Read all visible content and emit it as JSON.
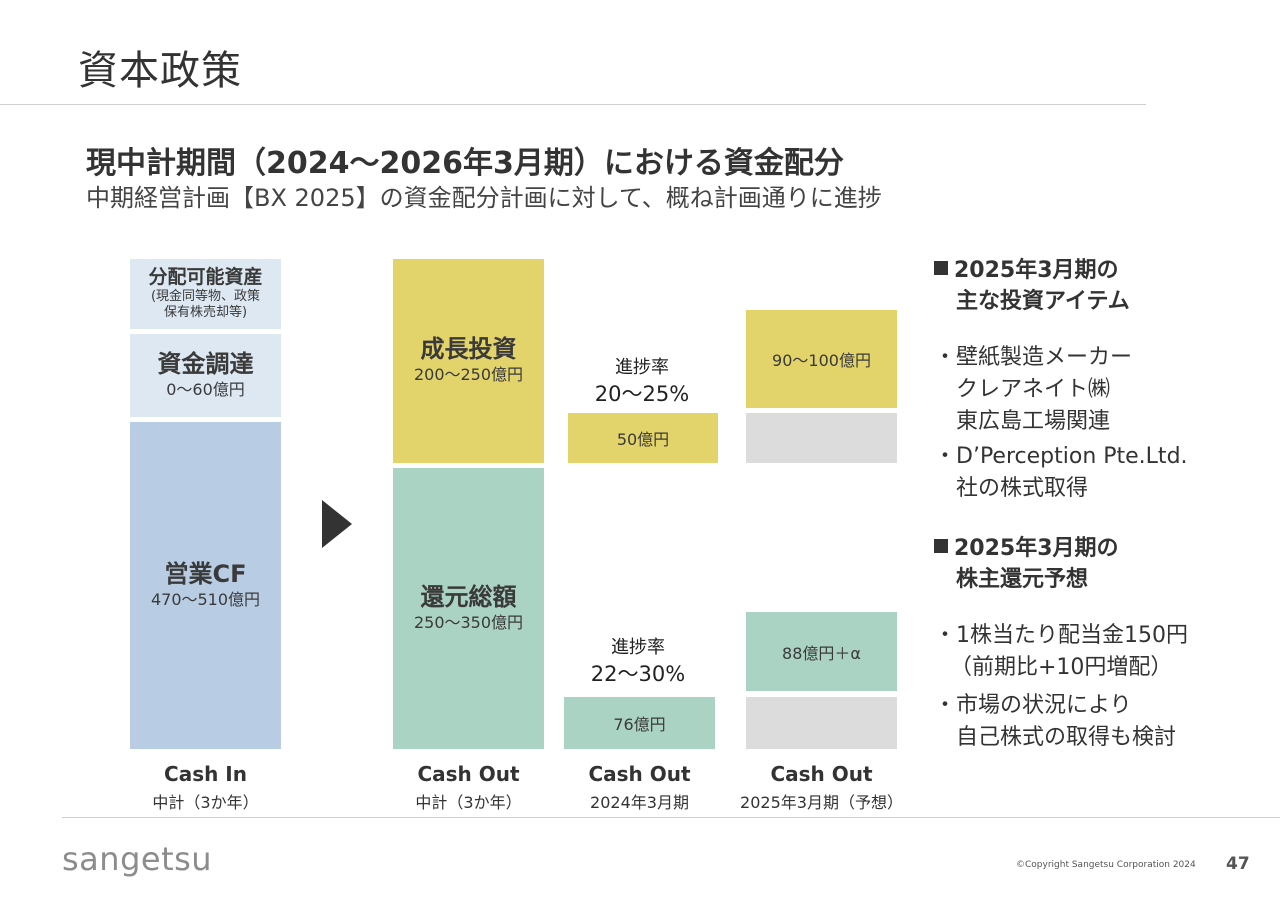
{
  "page_title": "資本政策",
  "heading": "現中計期間（2024～2026年3月期）における資金配分",
  "subheading": "中期経営計画【BX 2025】の資金配分計画に対して、概ね計画通りに進捗",
  "cash_in": {
    "distributable_title": "分配可能資産",
    "distributable_note_1": "(現金同等物、政策",
    "distributable_note_2": "保有株売却等)",
    "funding_title": "資金調達",
    "funding_amount": "0～60億円",
    "operating_title": "営業CF",
    "operating_amount": "470～510億円",
    "label": "Cash In",
    "sublabel": "中計（3か年）"
  },
  "cash_out_plan": {
    "growth_title": "成長投資",
    "growth_amount": "200～250億円",
    "return_title": "還元総額",
    "return_amount": "250～350億円",
    "label": "Cash Out",
    "sublabel": "中計（3か年）"
  },
  "cash_out_2024": {
    "growth_rate_label": "進捗率",
    "growth_rate_value": "20～25%",
    "growth_amount": "50億円",
    "return_rate_label": "進捗率",
    "return_rate_value": "22～30%",
    "return_amount": "76億円",
    "label": "Cash Out",
    "sublabel": "2024年3月期"
  },
  "cash_out_2025": {
    "growth_amount": "90～100億円",
    "return_amount": "88億円＋α",
    "label": "Cash Out",
    "sublabel": "2025年3月期（予想）"
  },
  "side": {
    "investment_head_1": "2025年3月期の",
    "investment_head_2": "主な投資アイテム",
    "investment_items": [
      [
        "壁紙製造メーカー",
        "クレアネイト㈱",
        "東広島工場関連"
      ],
      [
        "D’Perception Pte.Ltd.",
        "社の株式取得"
      ]
    ],
    "return_head_1": "2025年3月期の",
    "return_head_2": "株主還元予想",
    "return_items": [
      [
        "1株当たり配当金150円",
        "（前期比+10円増配）"
      ],
      [
        "市場の状況により",
        "自己株式の取得も検討"
      ]
    ]
  },
  "colors": {
    "light_blue": "#dde8f3",
    "blue": "#b8cce3",
    "yellow": "#e2d36b",
    "green": "#abd3c3",
    "grey": "#dcdcdc"
  },
  "footer": {
    "logo": "sangetsu",
    "copyright": "©Copyright Sangetsu Corporation 2024",
    "page_number": "47"
  }
}
